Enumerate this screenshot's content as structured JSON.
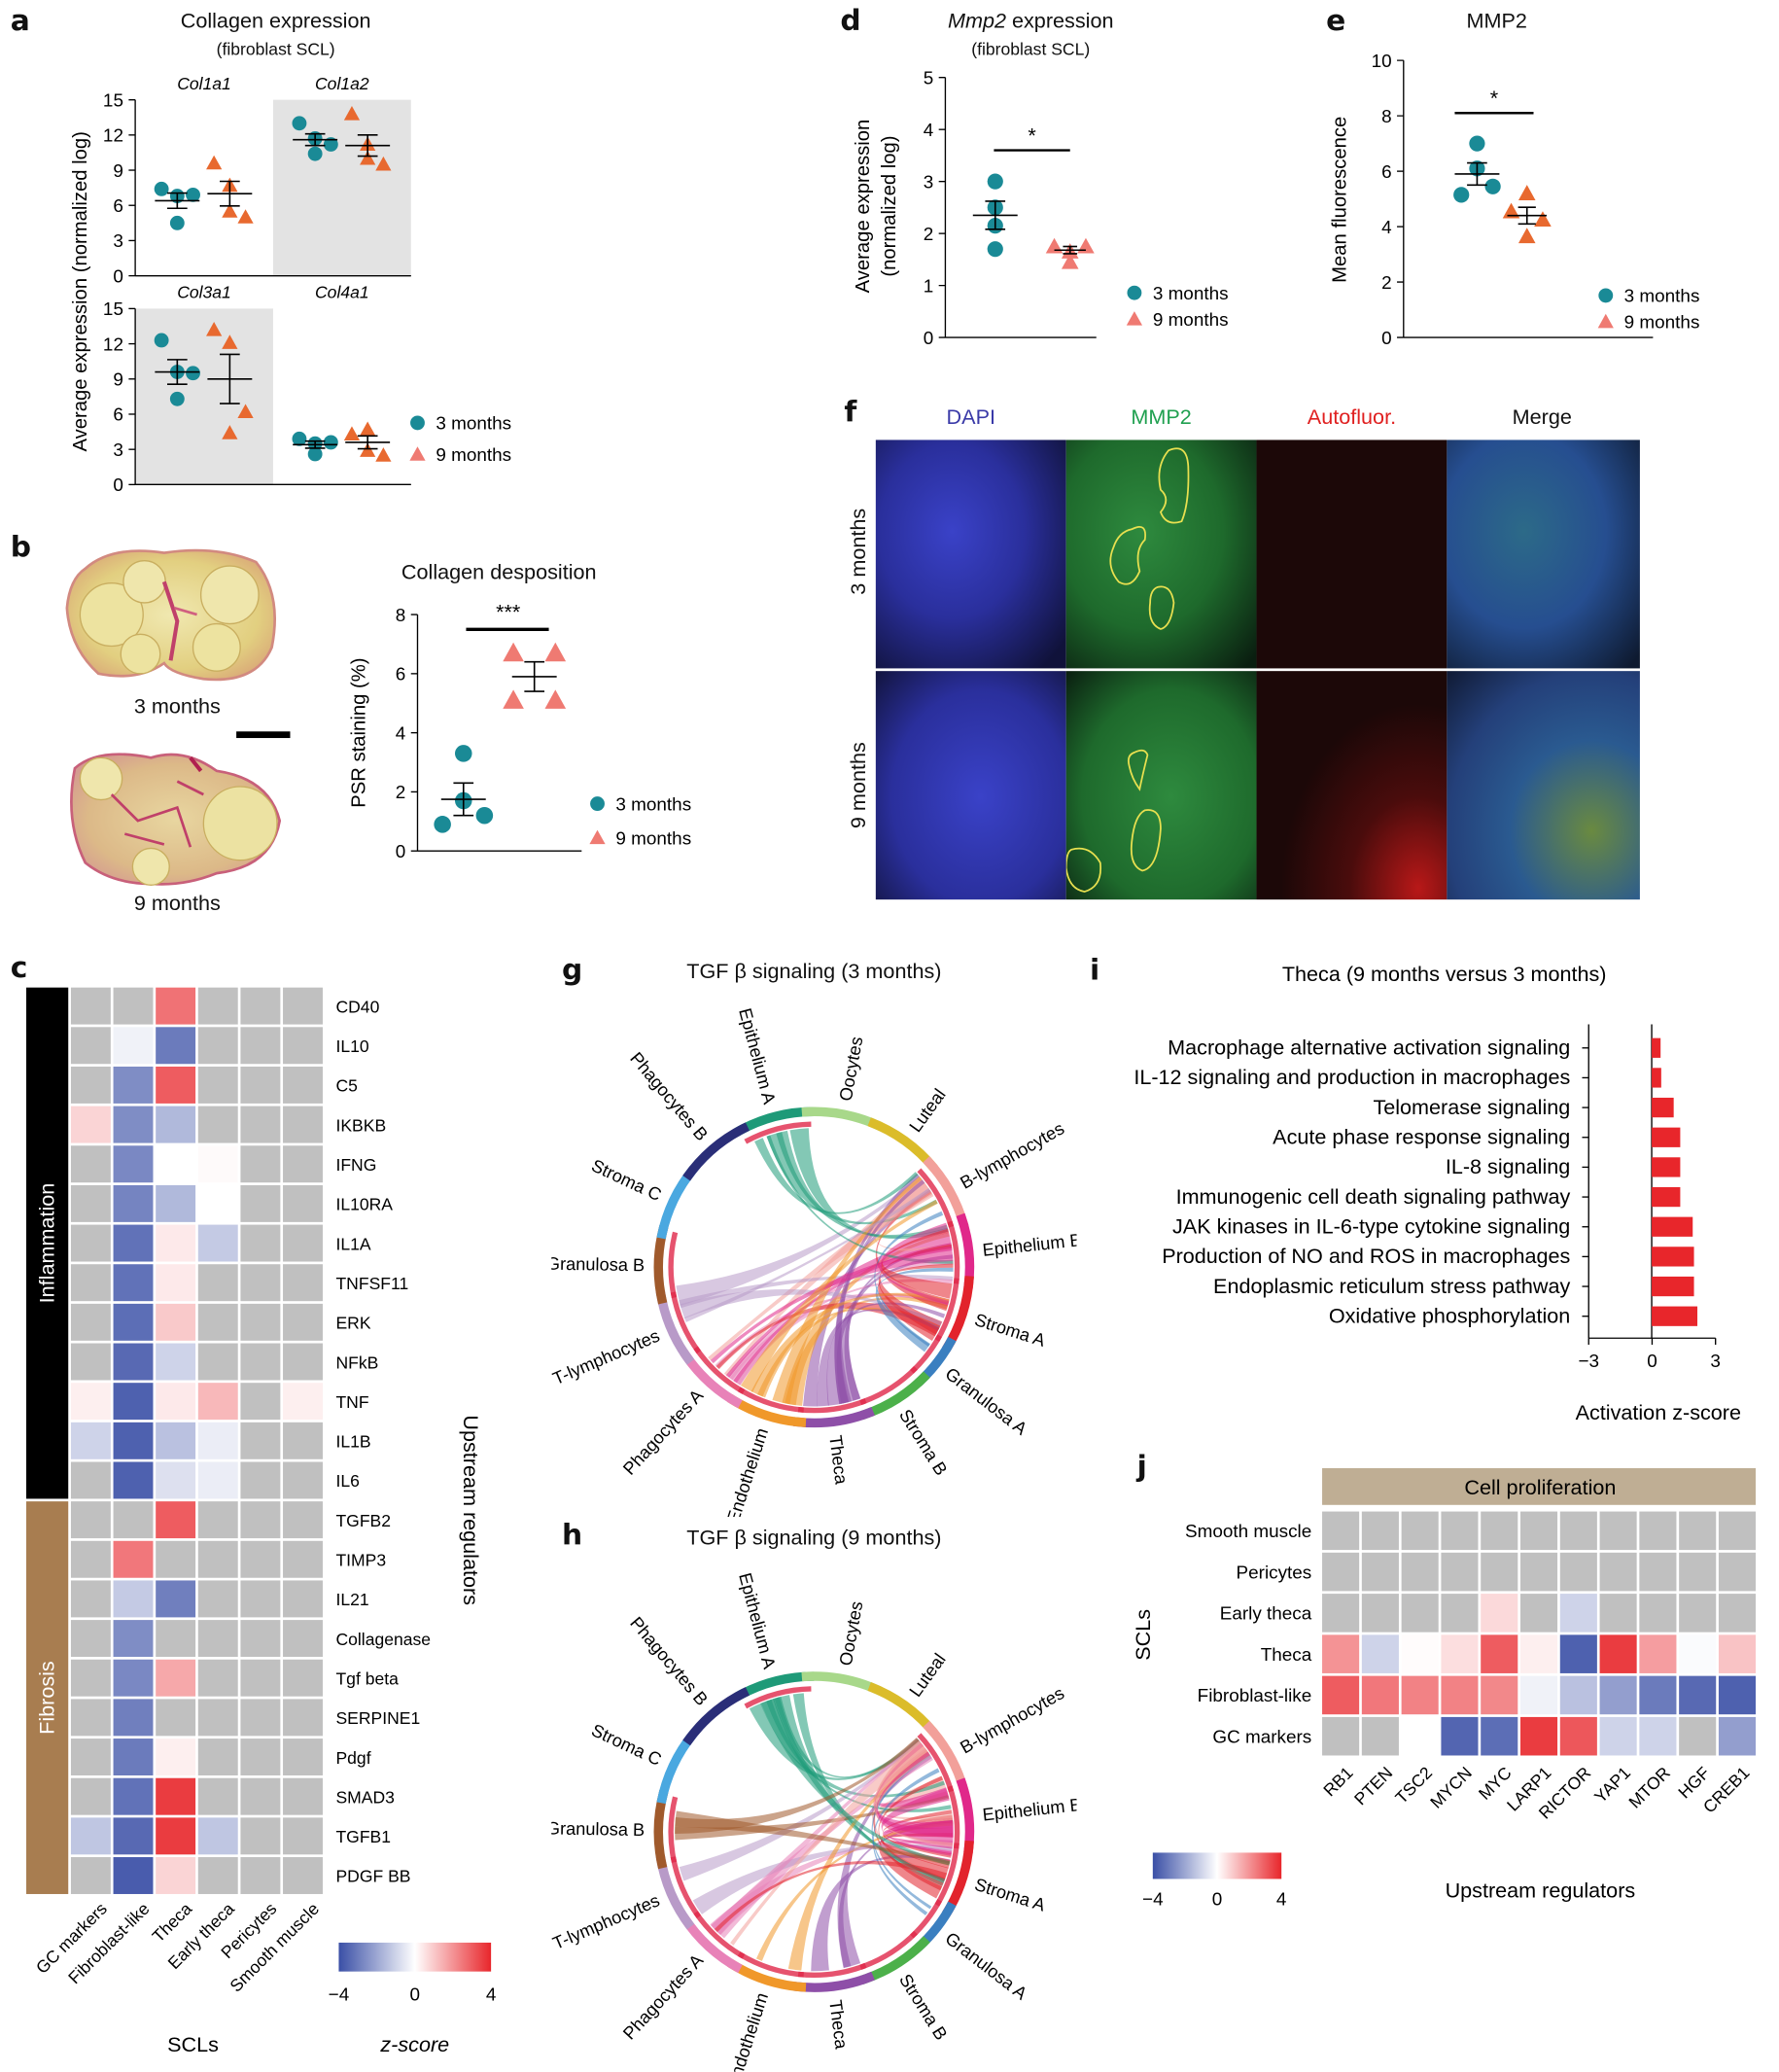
{
  "colors": {
    "three_months": "#1a8a96",
    "nine_months_a": "#e8692f",
    "nine_months_b": "#ef7a72",
    "heat_neg": "#3a4fa6",
    "heat_zero": "#ffffff",
    "heat_pos": "#e8262b",
    "heat_na": "#c0c0c0",
    "bar": "#e8262b",
    "inflammation": "#000000",
    "fibrosis": "#a87d50",
    "cell_prolif": "#bfae94"
  },
  "panels": {
    "a": {
      "label": "a",
      "title": "Collagen expression",
      "subtitle": "(fibroblast SCL)",
      "ylabel": "Average expression (normalized log)",
      "legend": [
        "3 months",
        "9 months"
      ]
    },
    "b": {
      "label": "b",
      "img_labels": [
        "3 months",
        "9 months"
      ],
      "title": "Collagen desposition",
      "ylabel": "PSR staining (%)",
      "significance": "***",
      "legend": [
        "3 months",
        "9 months"
      ]
    },
    "c": {
      "label": "c",
      "group_labels": [
        "Inflammation",
        "Fibrosis"
      ],
      "xlabel": "SCLs",
      "ylabel": "Upstream regulators",
      "legend_title": "z-score",
      "legend_ticks": [
        "−4",
        "0",
        "4"
      ]
    },
    "d": {
      "label": "d",
      "title_italic": "Mmp2",
      "title_rest": " expression",
      "subtitle": "(fibroblast SCL)",
      "ylabel": "Average expression (normalized log)",
      "significance": "*",
      "legend": [
        "3 months",
        "9 months"
      ]
    },
    "e": {
      "label": "e",
      "title": "MMP2",
      "ylabel": "Mean fluorescence",
      "significance": "*",
      "legend": [
        "3 months",
        "9 months"
      ]
    },
    "f": {
      "label": "f",
      "columns": [
        "DAPI",
        "MMP2",
        "Autofluor.",
        "Merge"
      ],
      "column_colors": [
        "#3a3aa8",
        "#20a050",
        "#e02020",
        "#111111"
      ],
      "rows": [
        "3 months",
        "9 months"
      ]
    },
    "g": {
      "label": "g",
      "title": "TGF β signaling (3 months)"
    },
    "h": {
      "label": "h",
      "title": "TGF β signaling (9 months)"
    },
    "i": {
      "label": "i"
    },
    "j": {
      "label": "j",
      "header": "Cell proliferation",
      "ylabel": "SCLs",
      "xlabel": "Upstream regulators",
      "legend_title": "z-score",
      "legend_ticks": [
        "−4",
        "0",
        "4"
      ]
    }
  },
  "chart_data": [
    {
      "id": "a",
      "type": "scatter",
      "title": "Collagen expression (fibroblast SCL)",
      "ylabel": "Average expression (normalized log)",
      "ylim": [
        0,
        15
      ],
      "yticks": [
        0,
        3,
        6,
        9,
        12,
        15
      ],
      "facets": [
        {
          "name": "Col1a1",
          "shaded": false,
          "series": [
            {
              "name": "3 months",
              "points": [
                7.4,
                6.8,
                6.9,
                4.5
              ],
              "mean": 6.4,
              "sem": 0.65
            },
            {
              "name": "9 months",
              "points": [
                9.6,
                7.7,
                5.0,
                5.5
              ],
              "mean": 7.0,
              "sem": 1.05
            }
          ]
        },
        {
          "name": "Col1a2",
          "shaded": true,
          "series": [
            {
              "name": "3 months",
              "points": [
                13.0,
                11.7,
                11.2,
                10.4
              ],
              "mean": 11.6,
              "sem": 0.5
            },
            {
              "name": "9 months",
              "points": [
                13.8,
                11.2,
                9.5,
                10.0
              ],
              "mean": 11.1,
              "sem": 0.9
            }
          ]
        },
        {
          "name": "Col3a1",
          "shaded": true,
          "series": [
            {
              "name": "3 months",
              "points": [
                12.3,
                9.6,
                9.5,
                7.3
              ],
              "mean": 9.6,
              "sem": 1.05
            },
            {
              "name": "9 months",
              "points": [
                13.2,
                12.1,
                6.2,
                4.4
              ],
              "mean": 9.0,
              "sem": 2.1
            }
          ]
        },
        {
          "name": "Col4a1",
          "shaded": false,
          "series": [
            {
              "name": "3 months",
              "points": [
                3.9,
                3.5,
                3.6,
                2.6
              ],
              "mean": 3.4,
              "sem": 0.3
            },
            {
              "name": "9 months",
              "points": [
                4.3,
                4.7,
                2.5,
                2.9
              ],
              "mean": 3.6,
              "sem": 0.55
            }
          ]
        }
      ]
    },
    {
      "id": "b",
      "type": "scatter",
      "title": "Collagen desposition",
      "ylabel": "PSR staining (%)",
      "ylim": [
        0,
        8
      ],
      "yticks": [
        0,
        2,
        4,
        6,
        8
      ],
      "series": [
        {
          "name": "3 months",
          "points": [
            3.3,
            1.7,
            1.2,
            0.9
          ],
          "mean": 1.75,
          "sem": 0.55
        },
        {
          "name": "9 months",
          "points": [
            6.7,
            6.7,
            5.1,
            5.1
          ],
          "mean": 5.9,
          "sem": 0.5
        }
      ],
      "annotation": "***"
    },
    {
      "id": "d",
      "type": "scatter",
      "title": "Mmp2 expression (fibroblast SCL)",
      "ylabel": "Average expression (normalized log)",
      "ylim": [
        0,
        5
      ],
      "yticks": [
        0,
        1,
        2,
        3,
        4,
        5
      ],
      "series": [
        {
          "name": "3 months",
          "points": [
            3.0,
            2.5,
            2.15,
            1.7
          ],
          "mean": 2.35,
          "sem": 0.27
        },
        {
          "name": "9 months",
          "points": [
            1.75,
            1.65,
            1.75,
            1.45
          ],
          "mean": 1.68,
          "sem": 0.07
        }
      ],
      "annotation": "*"
    },
    {
      "id": "e",
      "type": "scatter",
      "title": "MMP2",
      "ylabel": "Mean fluorescence",
      "ylim": [
        0,
        10
      ],
      "yticks": [
        0,
        2,
        4,
        6,
        8,
        10
      ],
      "series": [
        {
          "name": "3 months",
          "points": [
            7.0,
            6.1,
            5.45,
            5.15
          ],
          "mean": 5.9,
          "sem": 0.4
        },
        {
          "name": "9 months",
          "points": [
            5.2,
            4.55,
            4.25,
            3.65
          ],
          "mean": 4.4,
          "sem": 0.3
        }
      ],
      "annotation": "*"
    },
    {
      "id": "c",
      "type": "heatmap",
      "xlabel": "SCLs",
      "ylabel": "Upstream regulators",
      "columns": [
        "GC markers",
        "Fibroblast-like",
        "Theca",
        "Early theca",
        "Pericytes",
        "Smooth muscle"
      ],
      "groups": [
        {
          "name": "Inflammation",
          "rows": [
            "CD40",
            "IL10",
            "C5",
            "IKBKB",
            "IFNG",
            "IL10RA",
            "IL1A",
            "TNFSF11",
            "ERK",
            "NFkB",
            "TNF",
            "IL1B",
            "IL6"
          ]
        },
        {
          "name": "Fibrosis",
          "rows": [
            "TGFB2",
            "TIMP3",
            "IL21",
            "Collagenase",
            "Tgf beta",
            "SERPINE1",
            "Pdgf",
            "SMAD3",
            "TGFB1",
            "PDGF BB"
          ]
        }
      ],
      "values": [
        [
          null,
          null,
          2.6,
          null,
          null,
          null
        ],
        [
          null,
          -0.3,
          -3.0,
          null,
          null,
          null
        ],
        [
          null,
          -2.6,
          3.0,
          null,
          null,
          null
        ],
        [
          0.8,
          -2.6,
          -1.6,
          null,
          null,
          null
        ],
        [
          null,
          -2.7,
          0.0,
          0.1,
          null,
          null
        ],
        [
          null,
          -2.8,
          -1.6,
          0.0,
          null,
          null
        ],
        [
          null,
          -3.2,
          0.4,
          -1.2,
          null,
          null
        ],
        [
          null,
          -3.2,
          0.4,
          null,
          null,
          null
        ],
        [
          null,
          -3.3,
          1.0,
          null,
          null,
          null
        ],
        [
          null,
          -3.4,
          -1.0,
          null,
          null,
          null
        ],
        [
          0.3,
          -3.6,
          0.4,
          1.3,
          null,
          0.3
        ],
        [
          -1.0,
          -3.6,
          -1.4,
          -0.4,
          null,
          null
        ],
        [
          null,
          -3.6,
          -0.7,
          -0.4,
          null,
          null
        ],
        [
          null,
          null,
          3.0,
          null,
          null,
          null
        ],
        [
          null,
          2.5,
          null,
          null,
          null,
          null
        ],
        [
          null,
          -1.2,
          -2.9,
          null,
          null,
          null
        ],
        [
          null,
          -2.6,
          null,
          null,
          null,
          null
        ],
        [
          null,
          -2.7,
          1.6,
          null,
          null,
          null
        ],
        [
          null,
          -2.9,
          null,
          null,
          null,
          null
        ],
        [
          null,
          -3.0,
          0.3,
          null,
          null,
          null
        ],
        [
          null,
          -3.2,
          3.6,
          null,
          null,
          null
        ],
        [
          -1.3,
          -3.4,
          3.6,
          -1.3,
          null,
          null
        ],
        [
          null,
          -3.7,
          0.8,
          null,
          null,
          null
        ]
      ],
      "zlim": [
        -4,
        4
      ],
      "legend_title": "z-score"
    },
    {
      "id": "g",
      "type": "chord",
      "title": "TGF β signaling (3 months)",
      "sectors": [
        "Epithelium A",
        "Oocytes",
        "Luteal",
        "B-lymphocytes",
        "Epithelium B",
        "Stroma A",
        "Granulosa A",
        "Stroma B",
        "Theca",
        "Endothelium",
        "Phagocytes A",
        "T-lymphocytes",
        "Granulosa B",
        "Stroma C",
        "Phagocytes B"
      ],
      "sector_colors": [
        "#1e9a78",
        "#a8d88a",
        "#dbbc2a",
        "#f2a09a",
        "#e0288a",
        "#e2232c",
        "#3a7fc0",
        "#4cb04a",
        "#8e4fa8",
        "#f0982a",
        "#e882b8",
        "#b89ac8",
        "#a05a2c",
        "#4aa8e0",
        "#2a2e78"
      ]
    },
    {
      "id": "h",
      "type": "chord",
      "title": "TGF β signaling (9 months)",
      "sectors": [
        "Epithelium A",
        "Oocytes",
        "Luteal",
        "B-lymphocytes",
        "Epithelium B",
        "Stroma A",
        "Granulosa A",
        "Stroma B",
        "Theca",
        "Endothelium",
        "Phagocytes A",
        "T-lymphocytes",
        "Granulosa B",
        "Stroma C",
        "Phagocytes B"
      ],
      "sector_colors": [
        "#1e9a78",
        "#a8d88a",
        "#dbbc2a",
        "#f2a09a",
        "#e0288a",
        "#e2232c",
        "#3a7fc0",
        "#4cb04a",
        "#8e4fa8",
        "#f0982a",
        "#e882b8",
        "#b89ac8",
        "#a05a2c",
        "#4aa8e0",
        "#2a2e78"
      ]
    },
    {
      "id": "i",
      "type": "bar",
      "orientation": "horizontal",
      "title": "Theca (9 months versus 3 months)",
      "xlabel": "Activation z-score",
      "xlim": [
        -3,
        3
      ],
      "xticks": [
        "−3",
        "0",
        "3"
      ],
      "categories": [
        "Macrophage alternative activation signaling",
        "IL-12 signaling and production in macrophages",
        "Telomerase signaling",
        "Acute phase response signaling",
        "IL-8 signaling",
        "Immunogenic cell death signaling pathway",
        "JAK kinases in IL-6-type cytokine signaling",
        "Production of NO and ROS in macrophages",
        "Endoplasmic reticulum stress pathway",
        "Oxidative phosphorylation"
      ],
      "values": [
        0.42,
        0.45,
        1.04,
        1.35,
        1.35,
        1.35,
        1.94,
        2.0,
        2.0,
        2.16
      ]
    },
    {
      "id": "j",
      "type": "heatmap",
      "header": "Cell proliferation",
      "xlabel": "Upstream regulators",
      "ylabel": "SCLs",
      "columns": [
        "RB1",
        "PTEN",
        "TSC2",
        "MYCN",
        "MYC",
        "LARP1",
        "RICTOR",
        "YAP1",
        "MTOR",
        "HGF",
        "CREB1"
      ],
      "rows": [
        "Smooth muscle",
        "Pericytes",
        "Early theca",
        "Theca",
        "Fibroblast-like",
        "GC markers"
      ],
      "values": [
        [
          null,
          null,
          null,
          null,
          null,
          null,
          null,
          null,
          null,
          null,
          null
        ],
        [
          null,
          null,
          null,
          null,
          null,
          null,
          null,
          null,
          null,
          null,
          null
        ],
        [
          null,
          null,
          null,
          null,
          0.7,
          null,
          -1.0,
          null,
          null,
          null,
          null
        ],
        [
          2.0,
          -1.0,
          0.05,
          0.6,
          3.0,
          0.3,
          -3.6,
          3.6,
          1.8,
          -0.1,
          1.1
        ],
        [
          3.0,
          2.5,
          2.3,
          2.3,
          2.2,
          -0.3,
          -1.4,
          -2.2,
          -3.0,
          -3.4,
          -3.6
        ],
        [
          null,
          null,
          0.0,
          -3.5,
          -3.3,
          3.6,
          3.1,
          -1.0,
          -1.0,
          null,
          -2.2
        ]
      ],
      "zlim": [
        -4,
        4
      ],
      "legend_title": "z-score"
    }
  ]
}
